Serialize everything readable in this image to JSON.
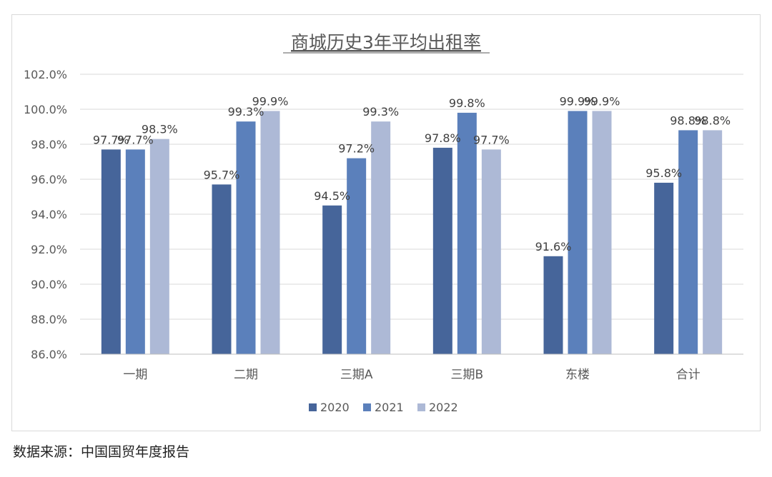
{
  "chart_data": {
    "type": "bar",
    "title": "商城历史3年平均出租率",
    "categories": [
      "一期",
      "二期",
      "三期A",
      "三期B",
      "东楼",
      "合计"
    ],
    "series": [
      {
        "name": "2020",
        "color": "#46659a",
        "values": [
          97.7,
          95.7,
          94.5,
          97.8,
          91.6,
          95.8
        ]
      },
      {
        "name": "2021",
        "color": "#5b80bb",
        "values": [
          97.7,
          99.3,
          97.2,
          99.8,
          99.9,
          98.8
        ]
      },
      {
        "name": "2022",
        "color": "#adb9d6",
        "values": [
          98.3,
          99.9,
          99.3,
          97.7,
          99.9,
          98.8
        ]
      }
    ],
    "data_labels": [
      [
        "97.7%",
        "95.7%",
        "94.5%",
        "97.8%",
        "91.6%",
        "95.8%"
      ],
      [
        "97.7%",
        "99.3%",
        "97.2%",
        "99.8%",
        "99.9%",
        "98.8%"
      ],
      [
        "98.3%",
        "99.9%",
        "99.3%",
        "97.7%",
        "99.9%",
        "98.8%"
      ]
    ],
    "y_ticks": [
      "86.0%",
      "88.0%",
      "90.0%",
      "92.0%",
      "94.0%",
      "96.0%",
      "98.0%",
      "100.0%",
      "102.0%"
    ],
    "ylim": [
      86,
      102
    ],
    "y_step": 2,
    "grid": true,
    "legend_position": "bottom",
    "xlabel": "",
    "ylabel": ""
  },
  "source_note": "数据来源：中国国贸年度报告"
}
